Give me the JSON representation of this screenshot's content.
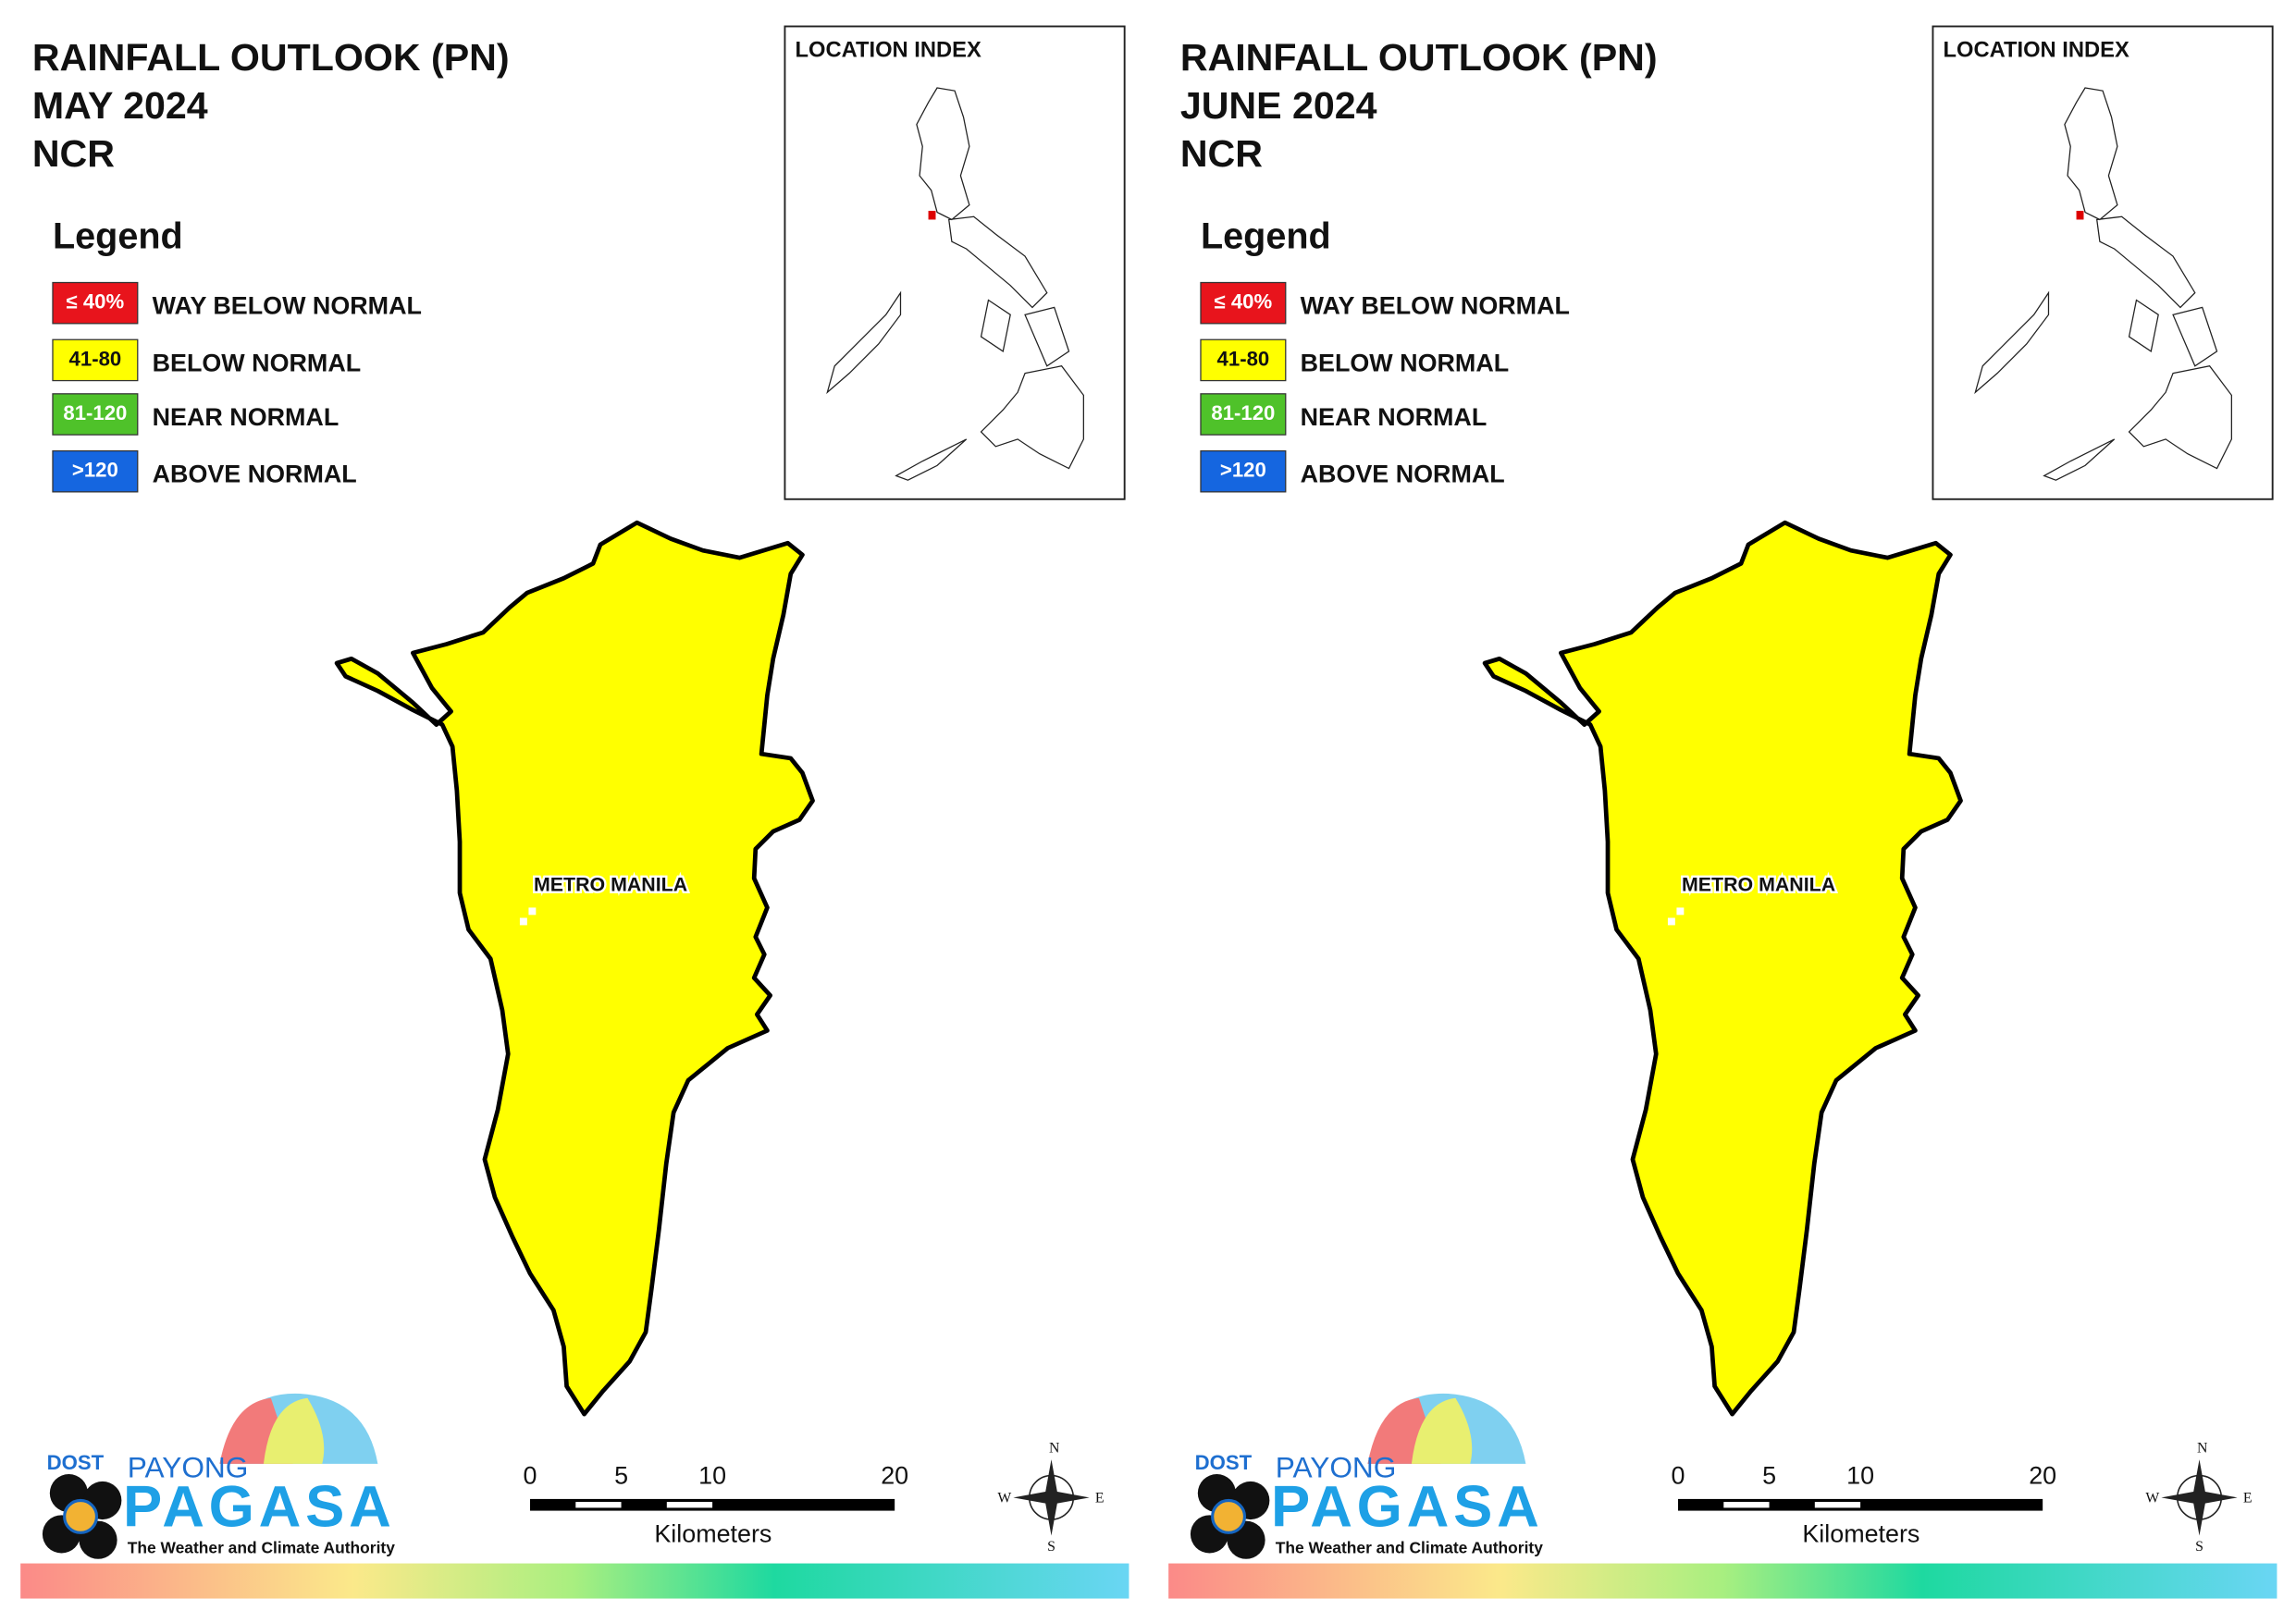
{
  "panels": [
    {
      "title": [
        "RAINFALL OUTLOOK (PN)",
        "MAY 2024",
        "NCR"
      ],
      "location_index": "LOCATION INDEX",
      "legend": {
        "title": "Legend",
        "items": [
          {
            "swatch": "≤ 40%",
            "label": "WAY BELOW NORMAL",
            "color": "#e8141c"
          },
          {
            "swatch": "41-80",
            "label": "BELOW NORMAL",
            "color": "#ffff00"
          },
          {
            "swatch": "81-120",
            "label": "NEAR NORMAL",
            "color": "#4fc22a"
          },
          {
            "swatch": ">120",
            "label": "ABOVE NORMAL",
            "color": "#1566e0"
          }
        ]
      },
      "region_label": "METRO MANILA",
      "scale": {
        "ticks": [
          0,
          5,
          10,
          20
        ],
        "unit": "Kilometers"
      },
      "compass": {
        "n": "N",
        "e": "E",
        "s": "S",
        "w": "W"
      },
      "logo": {
        "dost": "DOST",
        "payong": "PAYONG",
        "pagasa": "PAGASA",
        "tagline": "The Weather and Climate Authority"
      }
    },
    {
      "title": [
        "RAINFALL OUTLOOK (PN)",
        "JUNE 2024",
        "NCR"
      ],
      "location_index": "LOCATION INDEX",
      "legend": {
        "title": "Legend",
        "items": [
          {
            "swatch": "≤ 40%",
            "label": "WAY BELOW NORMAL",
            "color": "#e8141c"
          },
          {
            "swatch": "41-80",
            "label": "BELOW NORMAL",
            "color": "#ffff00"
          },
          {
            "swatch": "81-120",
            "label": "NEAR NORMAL",
            "color": "#4fc22a"
          },
          {
            "swatch": ">120",
            "label": "ABOVE NORMAL",
            "color": "#1566e0"
          }
        ]
      },
      "region_label": "METRO MANILA",
      "scale": {
        "ticks": [
          0,
          5,
          10,
          20
        ],
        "unit": "Kilometers"
      },
      "compass": {
        "n": "N",
        "e": "E",
        "s": "S",
        "w": "W"
      },
      "logo": {
        "dost": "DOST",
        "payong": "PAYONG",
        "pagasa": "PAGASA",
        "tagline": "The Weather and Climate Authority"
      }
    }
  ]
}
